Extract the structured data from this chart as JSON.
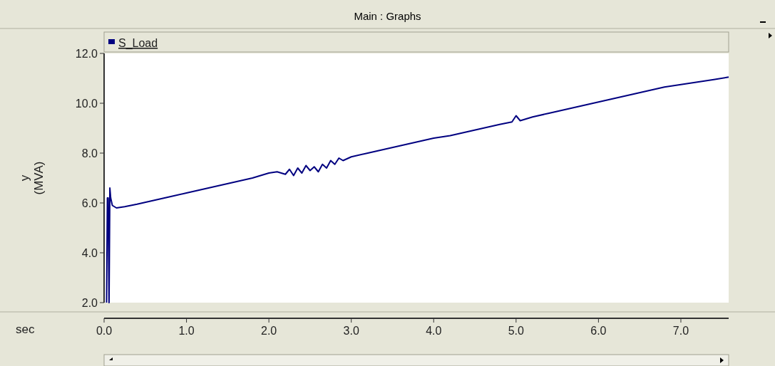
{
  "chart_data": {
    "type": "line",
    "title": "Main : Graphs",
    "xlabel": "sec",
    "ylabel": "y (MVA)",
    "xlim": [
      0,
      7.58
    ],
    "xticks": [
      {
        "value": 0,
        "label": "0.0"
      },
      {
        "value": 1,
        "label": "1.0"
      },
      {
        "value": 2,
        "label": "2.0"
      },
      {
        "value": 3,
        "label": "3.0"
      },
      {
        "value": 4,
        "label": "4.0"
      },
      {
        "value": 5,
        "label": "5.0"
      },
      {
        "value": 6,
        "label": "6.0"
      },
      {
        "value": 7,
        "label": "7.0"
      }
    ],
    "ylim": [
      2,
      12
    ],
    "yticks": [
      {
        "value": 2,
        "label": "2.0"
      },
      {
        "value": 4,
        "label": "4.0"
      },
      {
        "value": 6,
        "label": "6.0"
      },
      {
        "value": 8,
        "label": "8.0"
      },
      {
        "value": 10,
        "label": "10.0"
      },
      {
        "value": 12,
        "label": "12.0"
      }
    ],
    "grid": false,
    "legend": "top left",
    "series": [
      {
        "name": "S_Load",
        "color": "#000080",
        "x": [
          0.03,
          0.04,
          0.05,
          0.06,
          0.07,
          0.08,
          0.1,
          0.15,
          0.25,
          0.4,
          0.6,
          0.8,
          1.0,
          1.2,
          1.4,
          1.6,
          1.8,
          2.0,
          2.1,
          2.2,
          2.25,
          2.3,
          2.35,
          2.4,
          2.45,
          2.5,
          2.55,
          2.6,
          2.65,
          2.7,
          2.75,
          2.8,
          2.85,
          2.9,
          3.0,
          3.2,
          3.4,
          3.6,
          3.8,
          4.0,
          4.2,
          4.4,
          4.6,
          4.8,
          4.95,
          5.0,
          5.05,
          5.1,
          5.2,
          5.4,
          5.6,
          5.8,
          6.0,
          6.2,
          6.4,
          6.6,
          6.8,
          7.0,
          7.2,
          7.4,
          7.58
        ],
        "values": [
          2.0,
          6.2,
          6.2,
          2.0,
          6.6,
          6.2,
          5.9,
          5.8,
          5.85,
          5.95,
          6.1,
          6.25,
          6.4,
          6.55,
          6.7,
          6.85,
          7.0,
          7.2,
          7.25,
          7.15,
          7.35,
          7.1,
          7.4,
          7.2,
          7.5,
          7.3,
          7.45,
          7.25,
          7.55,
          7.4,
          7.7,
          7.55,
          7.8,
          7.7,
          7.85,
          8.0,
          8.15,
          8.3,
          8.45,
          8.6,
          8.7,
          8.85,
          9.0,
          9.15,
          9.25,
          9.5,
          9.3,
          9.35,
          9.45,
          9.6,
          9.75,
          9.9,
          10.05,
          10.2,
          10.35,
          10.5,
          10.65,
          10.75,
          10.85,
          10.95,
          11.05
        ]
      }
    ]
  }
}
